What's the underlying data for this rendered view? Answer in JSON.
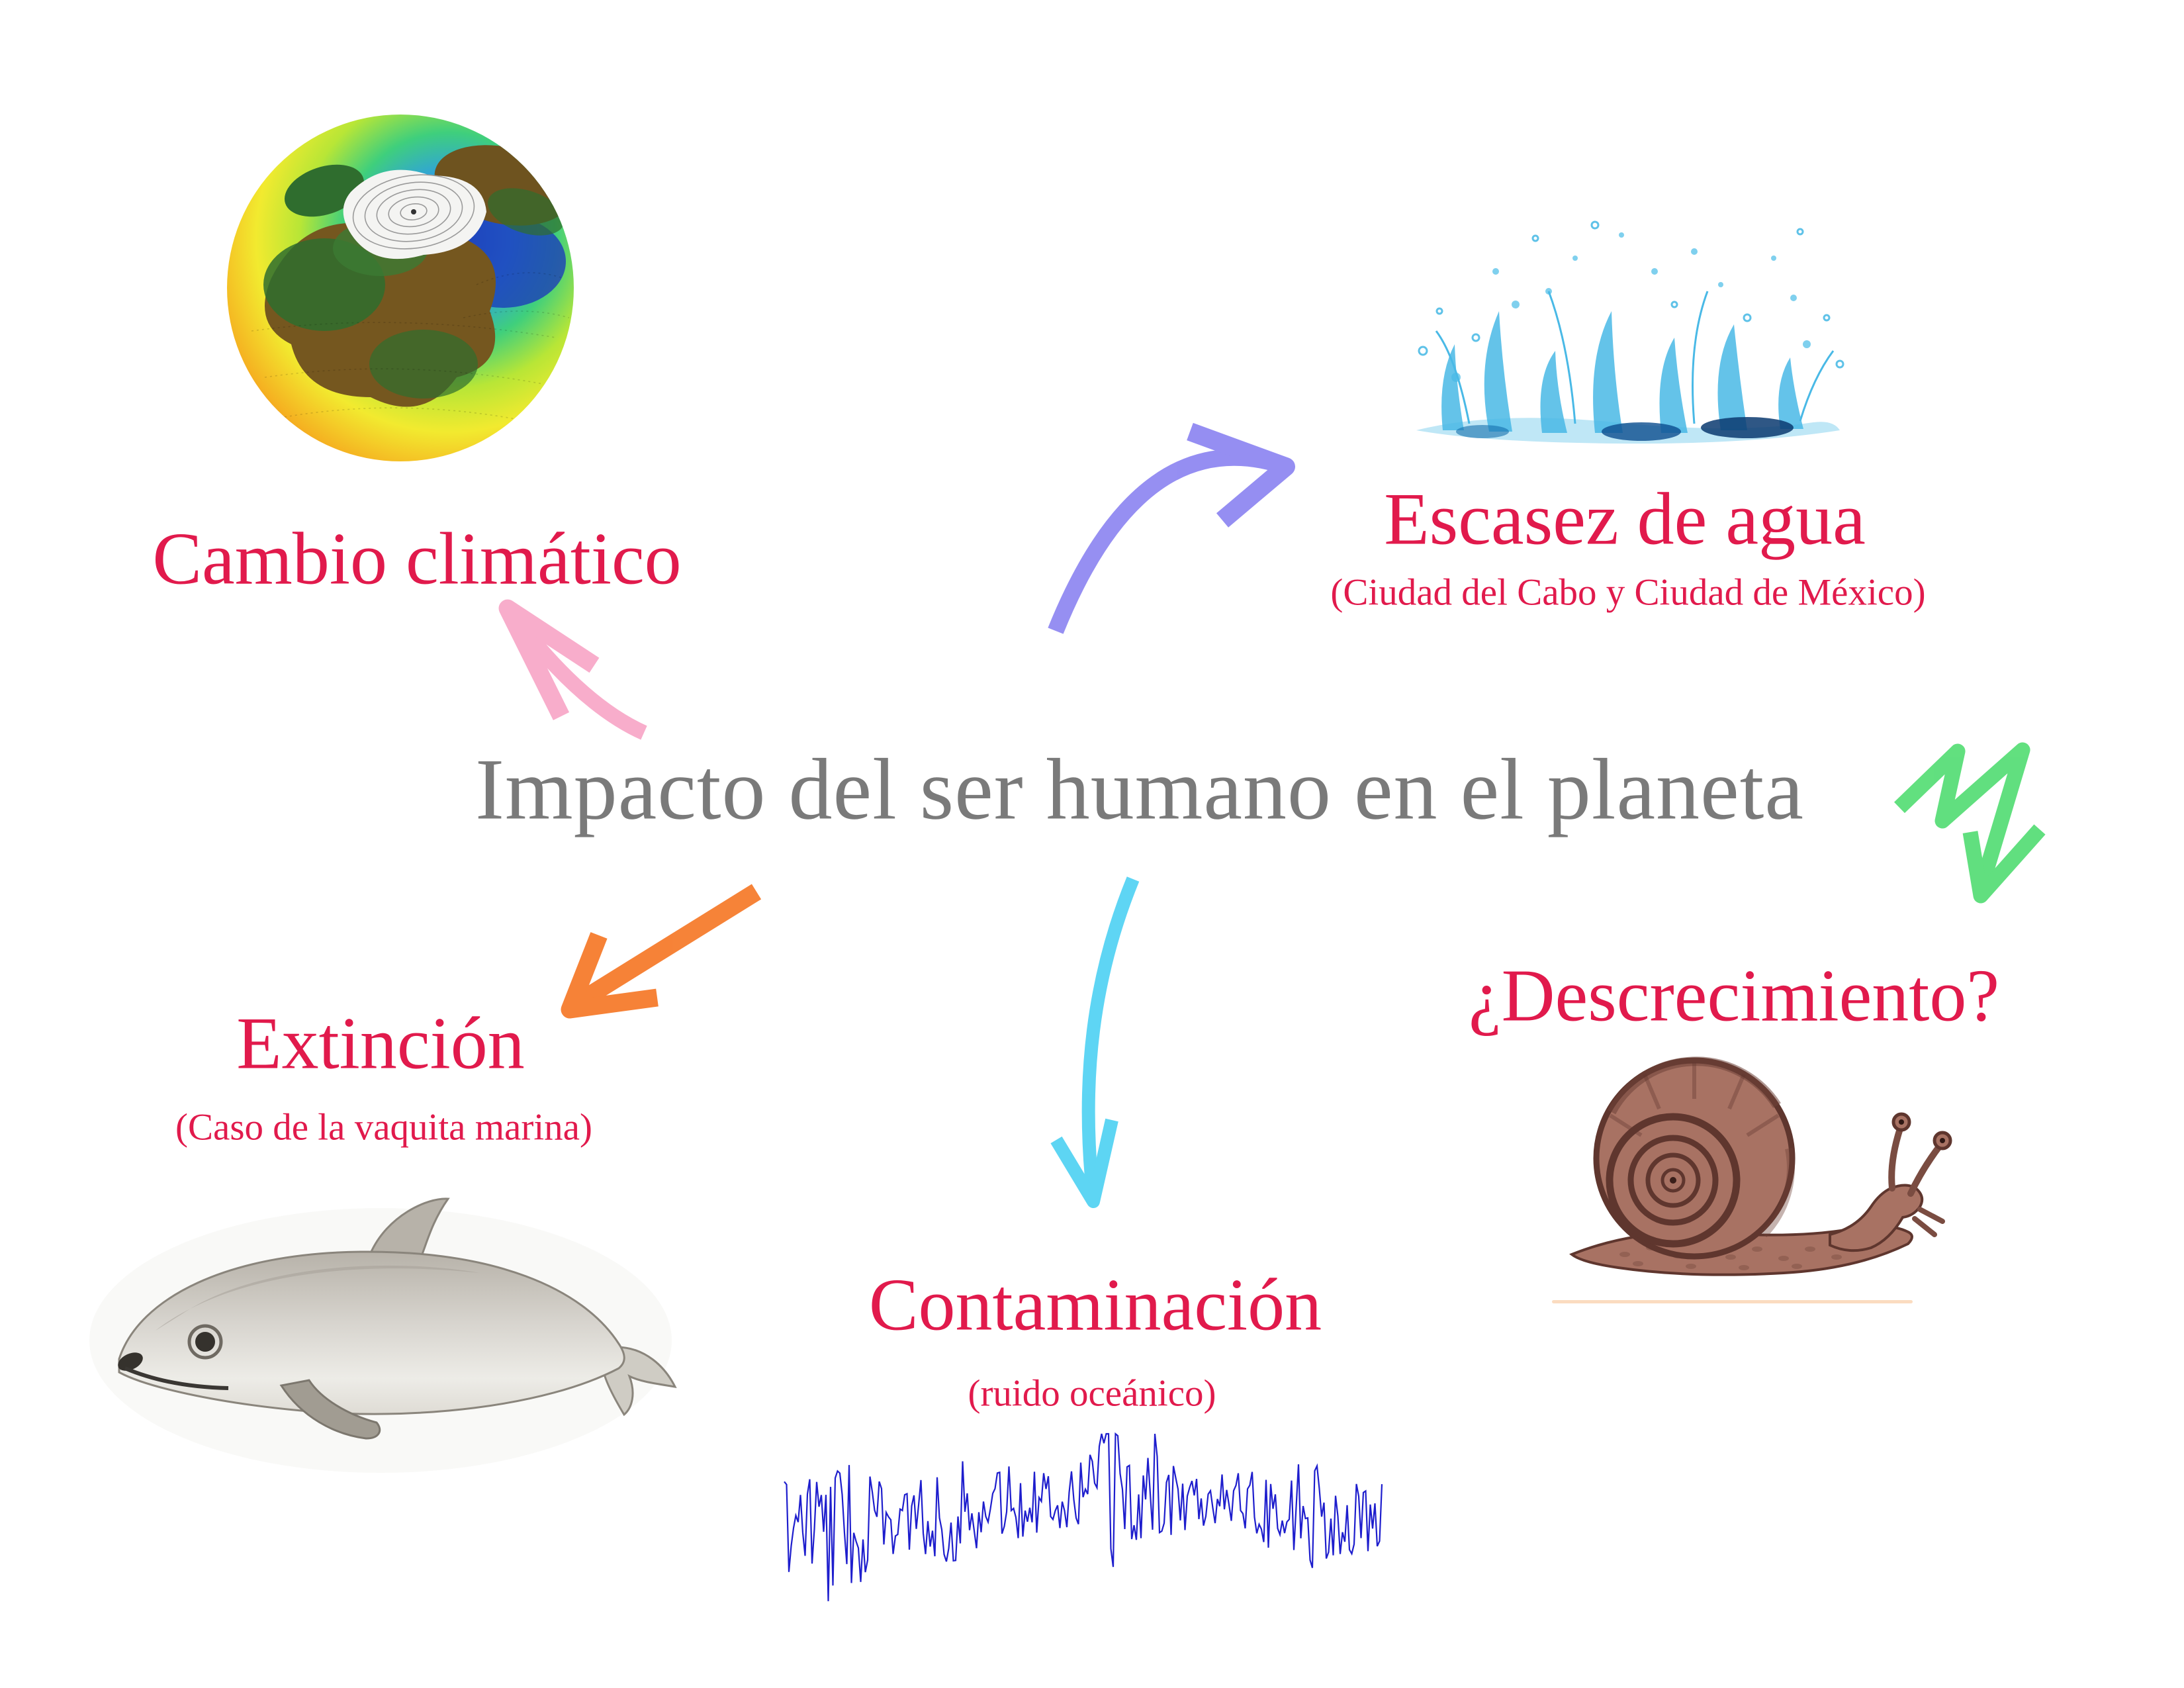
{
  "main_title": "Impacto del ser humano en el planeta",
  "branches": {
    "cambio_climatico": {
      "label": "Cambio climático"
    },
    "escasez_de_agua": {
      "label": "Escasez de agua",
      "subtitle": "(Ciudad del Cabo y Ciudad de México)"
    },
    "descrecimiento": {
      "label": "¿Descrecimiento?"
    },
    "extincion": {
      "label": "Extinción",
      "subtitle": "(Caso de la vaquita marina)"
    },
    "contaminacion": {
      "label": "Contaminación",
      "subtitle": "(ruido oceánico)"
    }
  },
  "illustrations": {
    "globe": "climate-model-globe",
    "splash": "water-splash",
    "snail": "snail-sepia-drawing",
    "vaquita": "vaquita-marina-drawing",
    "waveform": "ocean-noise-signal"
  },
  "colors": {
    "heading_red": "#e11a4c",
    "title_gray": "#7a7a7a",
    "arrow_pink": "#f8a9c9",
    "arrow_purple": "#8d85f1",
    "arrow_green": "#3fd963",
    "arrow_orange": "#f67c2d",
    "arrow_cyan": "#55d3f3",
    "waveform_blue": "#1e1ecd",
    "underline_peach": "#fbdcc0"
  }
}
